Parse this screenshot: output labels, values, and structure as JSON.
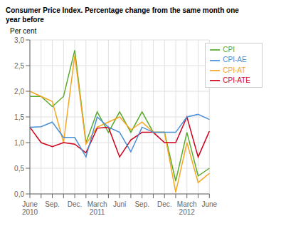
{
  "chart_data": {
    "type": "line",
    "title": "Consumer Price Index. Percentage change from the same month one\nyear before",
    "ylabel": "Per cent",
    "categories": [
      "June\n2010",
      null,
      "Sep.",
      null,
      "Dec.",
      null,
      "March\n2011",
      null,
      "Juni",
      null,
      "Sep.",
      null,
      "Dec.",
      null,
      "March\n2012",
      null,
      "June"
    ],
    "series": [
      {
        "name": "CPI",
        "color": "#5aaa2c",
        "values": [
          1.9,
          1.9,
          1.7,
          1.9,
          2.8,
          1.0,
          1.6,
          1.2,
          1.6,
          1.2,
          1.6,
          1.2,
          1.2,
          0.25,
          1.2,
          0.35,
          0.5
        ]
      },
      {
        "name": "CPI-AT",
        "color": "#f5a623",
        "values": [
          2.0,
          1.9,
          1.8,
          1.0,
          2.7,
          0.97,
          1.3,
          1.4,
          1.5,
          1.25,
          1.4,
          1.2,
          1.2,
          0.03,
          1.0,
          0.22,
          0.4
        ]
      },
      {
        "name": "CPI-ATE",
        "color": "#d0021b",
        "values": [
          1.3,
          1.0,
          0.92,
          1.0,
          0.97,
          0.8,
          1.28,
          1.3,
          0.72,
          1.05,
          1.2,
          1.2,
          1.0,
          1.0,
          1.5,
          0.72,
          1.22
        ]
      },
      {
        "name": "CPI-AE",
        "color": "#4a90d9",
        "values": [
          1.3,
          1.31,
          1.4,
          1.1,
          1.1,
          0.72,
          1.5,
          1.3,
          1.2,
          0.82,
          1.3,
          1.2,
          1.2,
          1.2,
          1.5,
          1.55,
          1.45
        ]
      }
    ],
    "ylim": [
      0.0,
      3.0
    ],
    "yticks": [
      {
        "value": 0.0,
        "label": "0,0"
      },
      {
        "value": 0.5,
        "label": "0,5"
      },
      {
        "value": 1.0,
        "label": "1,0"
      },
      {
        "value": 1.5,
        "label": "1,5"
      },
      {
        "value": 2.0,
        "label": "2,0"
      },
      {
        "value": 2.5,
        "label": "2,5"
      },
      {
        "value": 3.0,
        "label": "3,0"
      }
    ],
    "grid": true,
    "legend": "upper right"
  }
}
